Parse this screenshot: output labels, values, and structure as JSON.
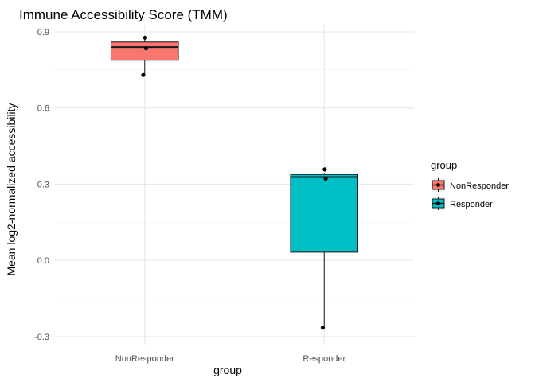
{
  "chart_data": {
    "type": "box",
    "title": "Immune Accessibility Score (TMM)",
    "xlabel": "group",
    "ylabel": "Mean log2-normalized accessibility",
    "categories": [
      "NonResponder",
      "Responder"
    ],
    "ylim": [
      -0.335,
      0.925
    ],
    "yticks": [
      -0.3,
      0.0,
      0.3,
      0.6,
      0.9
    ],
    "ytick_labels": [
      "-0.3",
      "0.0",
      "0.3",
      "0.6",
      "0.9"
    ],
    "grid": true,
    "legend": {
      "title": "group",
      "position": "right",
      "entries": [
        "NonResponder",
        "Responder"
      ]
    },
    "colors": {
      "NonResponder": "#F8766D",
      "Responder": "#00BFC4"
    },
    "boxes": [
      {
        "category": "NonResponder",
        "min": 0.73,
        "q1": 0.788,
        "median": 0.84,
        "q3": 0.86,
        "max": 0.875
      },
      {
        "category": "Responder",
        "min": -0.26,
        "q1": 0.032,
        "median": 0.328,
        "q3": 0.338,
        "max": 0.345
      }
    ],
    "points": [
      {
        "category": "NonResponder",
        "values": [
          0.877,
          0.835,
          0.73
        ]
      },
      {
        "category": "Responder",
        "values": [
          0.358,
          0.322,
          -0.265
        ]
      }
    ]
  }
}
